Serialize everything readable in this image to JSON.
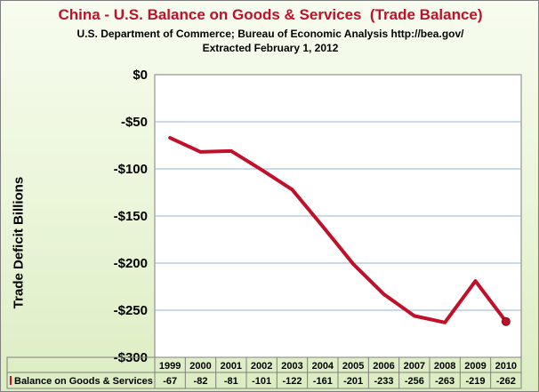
{
  "chart_data": {
    "type": "line",
    "title": "China - U.S. Balance on Goods & Services  (Trade Balance)",
    "subtitle": [
      "U.S. Department of Commerce; Bureau of Economic Analysis http://bea.gov/",
      "Extracted February 1, 2012"
    ],
    "ylabel": "Trade Deficit Billions",
    "xlabel": "",
    "ylim": [
      -300,
      0
    ],
    "yticks": [
      0,
      -50,
      -100,
      -150,
      -200,
      -250,
      -300
    ],
    "ytick_labels": [
      "$0",
      "-$50",
      "-$100",
      "-$150",
      "-$200",
      "-$250",
      "-$300"
    ],
    "grid": "horizontal",
    "categories": [
      "1999",
      "2000",
      "2001",
      "2002",
      "2003",
      "2004",
      "2005",
      "2006",
      "2007",
      "2008",
      "2009",
      "2010"
    ],
    "series": [
      {
        "name": "Balance on Goods & Services",
        "values": [
          -67,
          -82,
          -81,
          -101,
          -122,
          -161,
          -201,
          -233,
          -256,
          -263,
          -219,
          -262
        ],
        "color": "#c0102a",
        "value_labels": [
          "-67",
          "-82",
          "-81",
          "-101",
          "-122",
          "-161",
          "-201",
          "-233",
          "-256",
          "-263",
          "-219",
          "-262"
        ]
      }
    ],
    "data_table": true,
    "last_point_marker": true
  },
  "colors": {
    "title": "#c0102a",
    "plot_background": "#ffffff",
    "gridline": "#8fb4d9",
    "line": "#c0102a"
  }
}
